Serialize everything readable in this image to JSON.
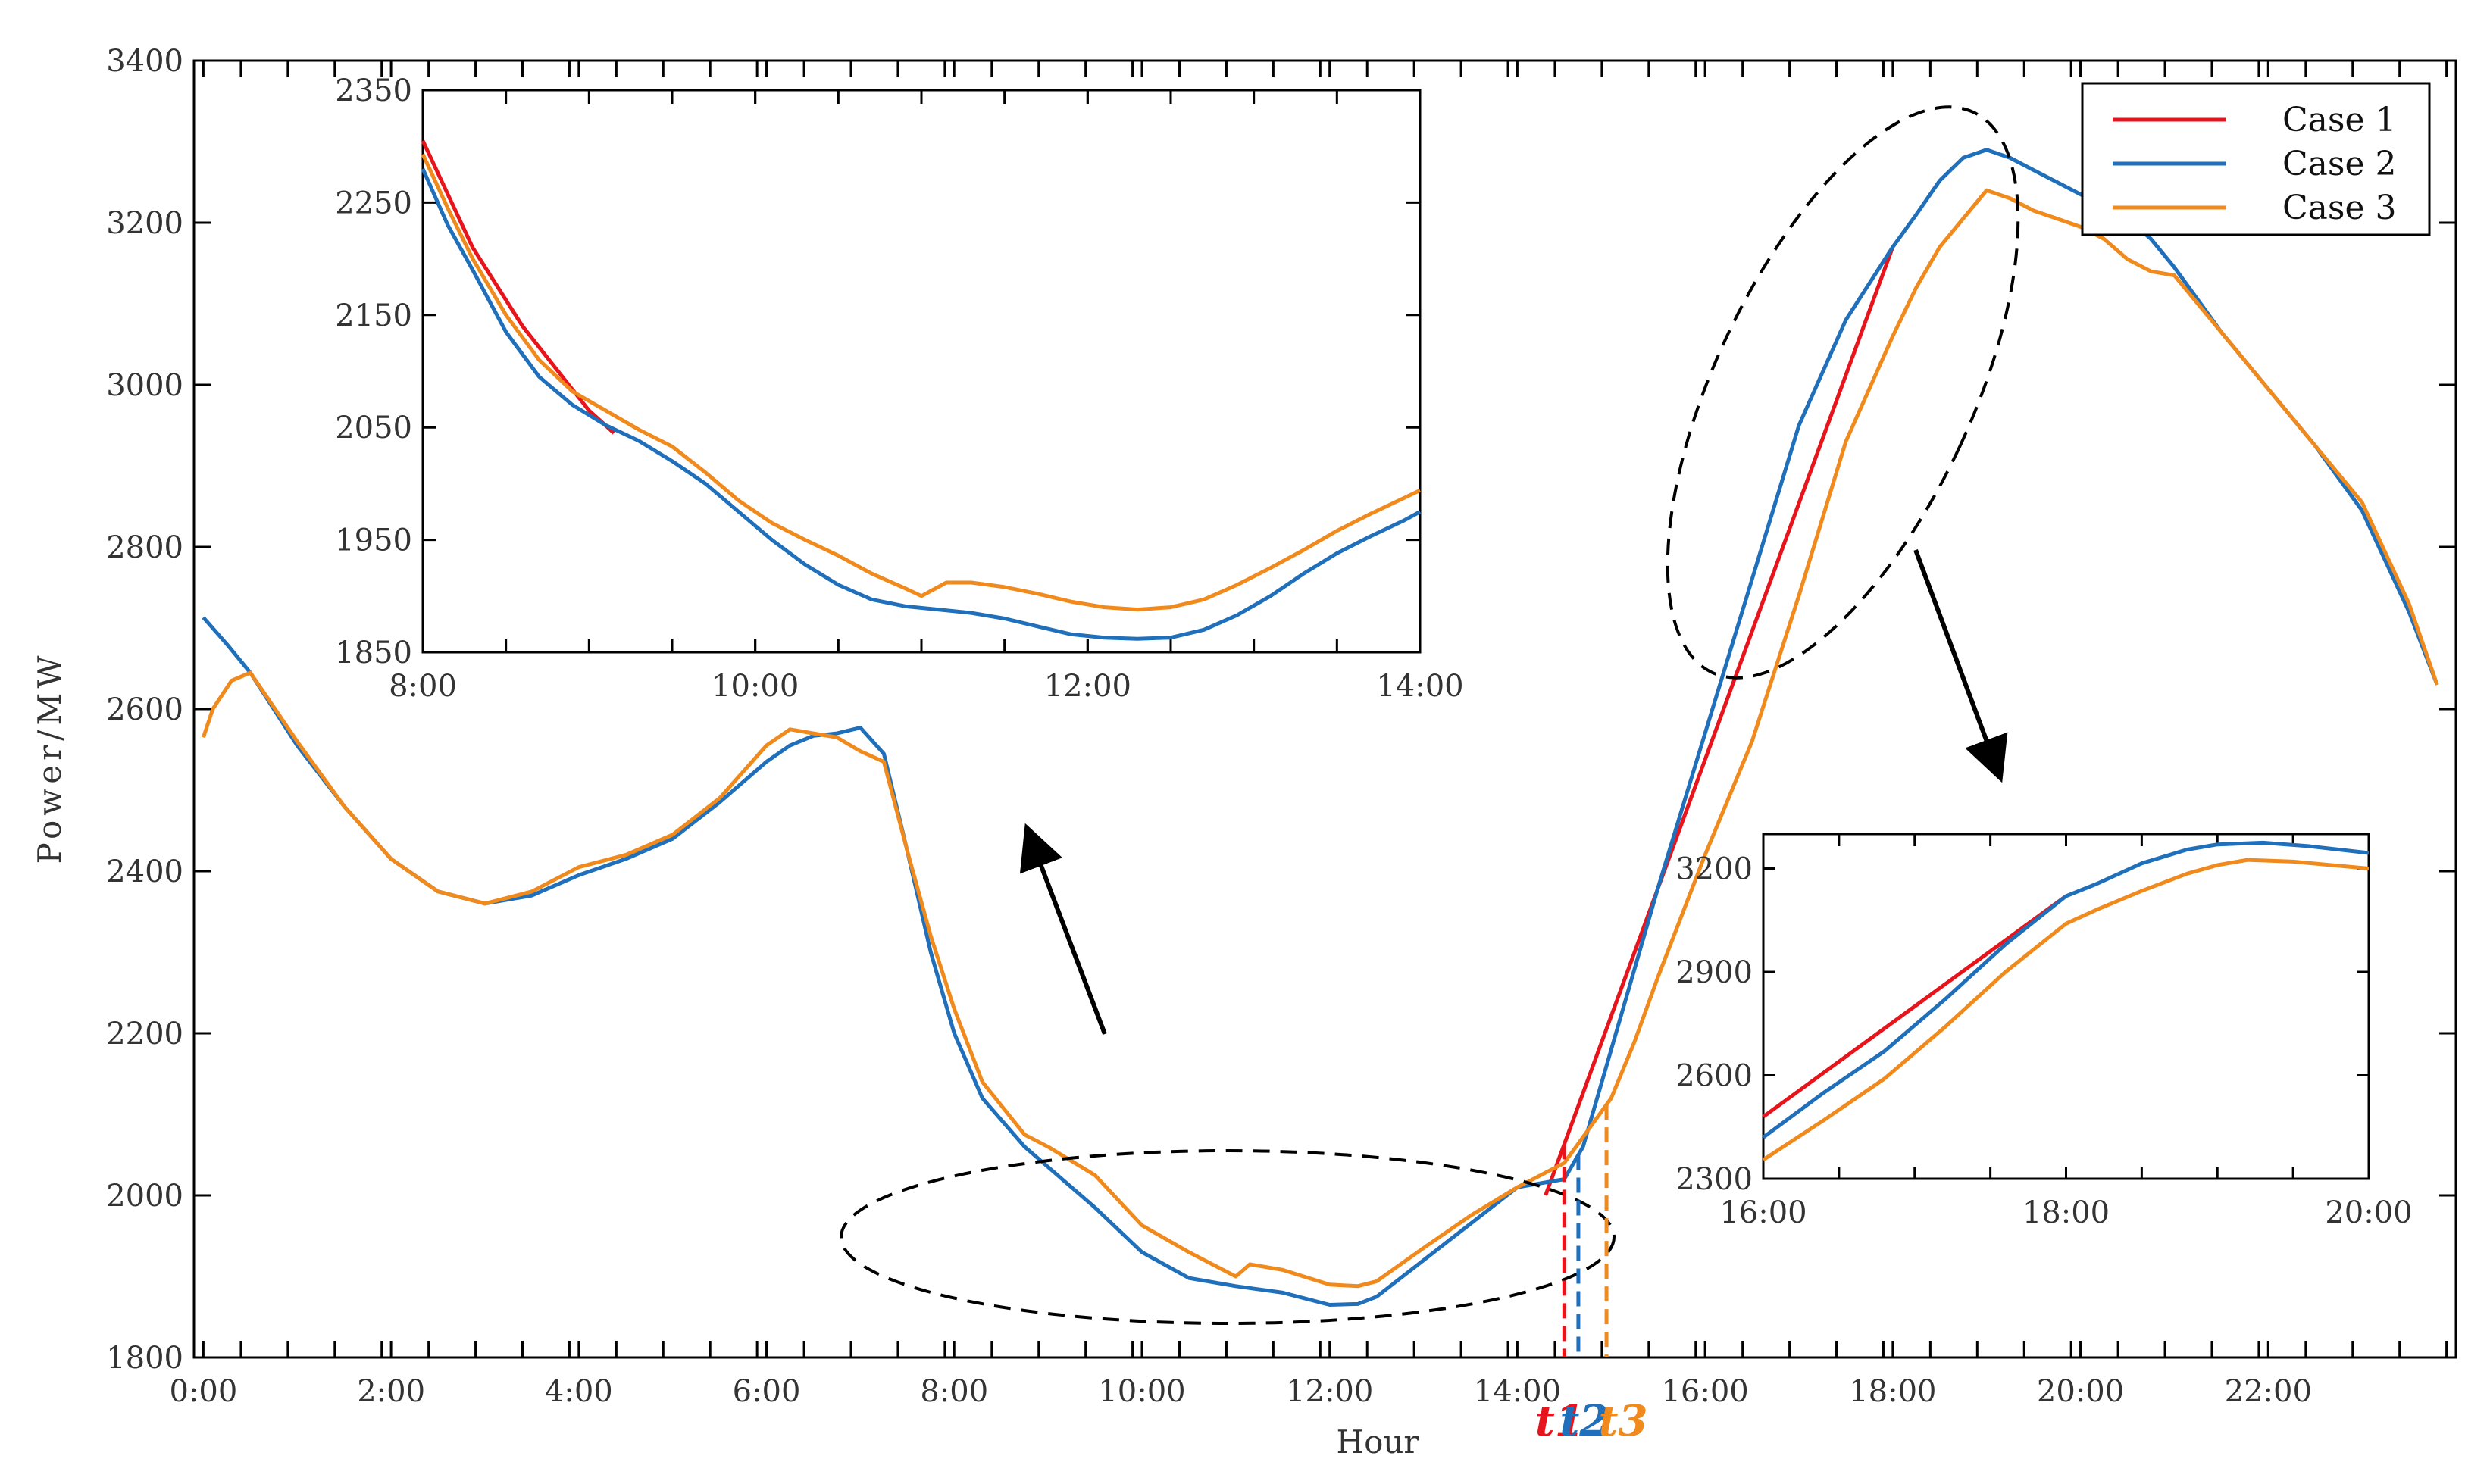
{
  "chart_data": [
    {
      "id": "main",
      "type": "line",
      "title": "",
      "xlabel": "Hour",
      "ylabel": "Power/MW",
      "xlim": [
        -0.1,
        24.0
      ],
      "ylim": [
        1800,
        3400
      ],
      "grid": false,
      "x_ticks": [
        0,
        2,
        4,
        6,
        8,
        10,
        12,
        14,
        16,
        18,
        20,
        22
      ],
      "x_tick_labels": [
        "0:00",
        "2:00",
        "4:00",
        "6:00",
        "8:00",
        "10:00",
        "12:00",
        "14:00",
        "16:00",
        "18:00",
        "20:00",
        "22:00"
      ],
      "y_ticks": [
        1800,
        2000,
        2200,
        2400,
        2600,
        2800,
        3000,
        3200,
        3400
      ],
      "y_tick_labels": [
        "1800",
        "2000",
        "2200",
        "2400",
        "2600",
        "2800",
        "3000",
        "3200",
        "3400"
      ],
      "legend": {
        "position": "top-right",
        "entries": [
          "Case 1",
          "Case 2",
          "Case 3"
        ]
      },
      "series": [
        {
          "name": "Case 1",
          "color": "#e8141c",
          "x": [
            14.3,
            18.0
          ],
          "y": [
            2000,
            3170
          ]
        },
        {
          "name": "Case 2",
          "color": "#1f6fba",
          "x": [
            0.0,
            0.25,
            0.5,
            1.0,
            1.5,
            2.0,
            2.5,
            3.0,
            3.5,
            4.0,
            4.5,
            5.0,
            5.5,
            6.0,
            6.25,
            6.5,
            6.75,
            7.0,
            7.25,
            7.5,
            7.75,
            8.0,
            8.3,
            8.75,
            9.0,
            9.5,
            10.0,
            10.5,
            11.0,
            11.5,
            12.0,
            12.3,
            12.5,
            13.0,
            13.5,
            14.0,
            14.5,
            14.7,
            15.0,
            15.5,
            16.0,
            16.5,
            17.0,
            17.5,
            18.0,
            18.25,
            18.5,
            18.75,
            19.0,
            19.25,
            19.5,
            19.75,
            20.0,
            20.25,
            20.5,
            20.75,
            21.0,
            21.25,
            21.5,
            22.0,
            22.5,
            23.0,
            23.5,
            23.8
          ],
          "y": [
            2713,
            2680,
            2645,
            2555,
            2480,
            2415,
            2375,
            2360,
            2370,
            2395,
            2415,
            2440,
            2485,
            2535,
            2555,
            2567,
            2570,
            2577,
            2545,
            2425,
            2300,
            2200,
            2120,
            2060,
            2035,
            1985,
            1930,
            1898,
            1888,
            1880,
            1865,
            1866,
            1875,
            1920,
            1965,
            2010,
            2020,
            2060,
            2180,
            2380,
            2570,
            2760,
            2950,
            3080,
            3170,
            3210,
            3252,
            3280,
            3290,
            3280,
            3265,
            3250,
            3235,
            3220,
            3205,
            3180,
            3145,
            3105,
            3065,
            2995,
            2925,
            2845,
            2720,
            2630
          ]
        },
        {
          "name": "Case 3",
          "color": "#f08a1c",
          "x": [
            0.0,
            0.1,
            0.3,
            0.5,
            1.0,
            1.5,
            2.0,
            2.5,
            3.0,
            3.5,
            4.0,
            4.5,
            5.0,
            5.5,
            6.0,
            6.25,
            6.5,
            6.75,
            7.0,
            7.25,
            7.5,
            7.75,
            8.0,
            8.3,
            8.75,
            9.0,
            9.5,
            10.0,
            10.5,
            11.0,
            11.15,
            11.5,
            12.0,
            12.3,
            12.5,
            13.0,
            13.5,
            14.0,
            14.5,
            14.75,
            15.0,
            15.25,
            15.5,
            16.0,
            16.5,
            17.0,
            17.5,
            18.0,
            18.25,
            18.5,
            18.75,
            19.0,
            19.25,
            19.5,
            19.75,
            20.0,
            20.25,
            20.5,
            20.75,
            21.0,
            21.25,
            21.5,
            22.0,
            22.5,
            23.0,
            23.5,
            23.8
          ],
          "y": [
            2565,
            2600,
            2635,
            2645,
            2560,
            2480,
            2415,
            2375,
            2360,
            2375,
            2405,
            2420,
            2445,
            2490,
            2555,
            2575,
            2570,
            2565,
            2548,
            2535,
            2425,
            2320,
            2230,
            2140,
            2075,
            2060,
            2025,
            1963,
            1930,
            1900,
            1915,
            1908,
            1890,
            1888,
            1894,
            1935,
            1975,
            2010,
            2040,
            2080,
            2120,
            2190,
            2270,
            2420,
            2560,
            2740,
            2930,
            3060,
            3120,
            3170,
            3205,
            3240,
            3230,
            3215,
            3205,
            3195,
            3180,
            3155,
            3140,
            3135,
            3100,
            3065,
            2995,
            2925,
            2855,
            2730,
            2630
          ]
        }
      ],
      "annotations": [
        {
          "label": "t1",
          "x": 14.5,
          "color": "#e8141c"
        },
        {
          "label": "t2",
          "x": 14.65,
          "color": "#1f6fba"
        },
        {
          "label": "t3",
          "x": 14.95,
          "color": "#f08a1c"
        }
      ]
    },
    {
      "id": "inset-left",
      "type": "line",
      "xlim": [
        8,
        14
      ],
      "ylim": [
        1850,
        2350
      ],
      "x_ticks": [
        8,
        10,
        12,
        14
      ],
      "x_tick_labels": [
        "8:00",
        "10:00",
        "12:00",
        "14:00"
      ],
      "y_ticks": [
        1850,
        1950,
        2050,
        2150,
        2250,
        2350
      ],
      "y_tick_labels": [
        "1850",
        "1950",
        "2050",
        "2150",
        "2250",
        "2350"
      ],
      "series": [
        {
          "name": "Case 1",
          "color": "#e8141c",
          "x": [
            8.0,
            8.3,
            8.6,
            9.0,
            9.15
          ],
          "y": [
            2305,
            2210,
            2140,
            2065,
            2045
          ]
        },
        {
          "name": "Case 2",
          "color": "#1f6fba",
          "x": [
            8.0,
            8.15,
            8.3,
            8.5,
            8.7,
            8.9,
            9.1,
            9.3,
            9.5,
            9.7,
            9.9,
            10.1,
            10.3,
            10.5,
            10.7,
            10.9,
            11.1,
            11.3,
            11.5,
            11.7,
            11.9,
            12.1,
            12.3,
            12.5,
            12.7,
            12.9,
            13.1,
            13.3,
            13.5,
            13.7,
            13.9,
            14.0
          ],
          "y": [
            2280,
            2230,
            2190,
            2135,
            2095,
            2070,
            2052,
            2038,
            2020,
            2000,
            1975,
            1950,
            1928,
            1910,
            1897,
            1891,
            1888,
            1885,
            1880,
            1873,
            1866,
            1863,
            1862,
            1863,
            1870,
            1883,
            1900,
            1920,
            1938,
            1953,
            1967,
            1975
          ]
        },
        {
          "name": "Case 3",
          "color": "#f08a1c",
          "x": [
            8.0,
            8.15,
            8.3,
            8.5,
            8.7,
            8.9,
            9.1,
            9.3,
            9.5,
            9.7,
            9.9,
            10.1,
            10.3,
            10.5,
            10.7,
            10.9,
            11.0,
            11.15,
            11.3,
            11.5,
            11.7,
            11.9,
            12.1,
            12.3,
            12.5,
            12.7,
            12.9,
            13.1,
            13.3,
            13.5,
            13.7,
            13.9,
            14.0
          ],
          "y": [
            2293,
            2245,
            2200,
            2150,
            2110,
            2082,
            2065,
            2048,
            2033,
            2010,
            1985,
            1965,
            1950,
            1936,
            1920,
            1907,
            1900,
            1912,
            1912,
            1908,
            1902,
            1895,
            1890,
            1888,
            1890,
            1897,
            1910,
            1925,
            1941,
            1958,
            1973,
            1987,
            1994
          ]
        }
      ]
    },
    {
      "id": "inset-right",
      "type": "line",
      "xlim": [
        16,
        20
      ],
      "ylim": [
        2300,
        3300
      ],
      "x_ticks": [
        16,
        18,
        20
      ],
      "x_tick_labels": [
        "16:00",
        "18:00",
        "20:00"
      ],
      "y_ticks": [
        2300,
        2600,
        2900,
        3200
      ],
      "y_tick_labels": [
        "2300",
        "2600",
        "2900",
        "3200"
      ],
      "series": [
        {
          "name": "Case 1",
          "color": "#e8141c",
          "x": [
            16.0,
            18.0
          ],
          "y": [
            2480,
            3120
          ]
        },
        {
          "name": "Case 2",
          "color": "#1f6fba",
          "x": [
            16.0,
            16.4,
            16.8,
            17.2,
            17.6,
            18.0,
            18.2,
            18.5,
            18.8,
            19.0,
            19.3,
            19.6,
            20.0
          ],
          "y": [
            2420,
            2550,
            2670,
            2820,
            2980,
            3120,
            3155,
            3215,
            3255,
            3270,
            3275,
            3265,
            3245
          ]
        },
        {
          "name": "Case 3",
          "color": "#f08a1c",
          "x": [
            16.0,
            16.4,
            16.8,
            17.2,
            17.6,
            18.0,
            18.2,
            18.5,
            18.8,
            19.0,
            19.2,
            19.5,
            20.0
          ],
          "y": [
            2355,
            2470,
            2590,
            2740,
            2900,
            3040,
            3080,
            3135,
            3185,
            3210,
            3225,
            3220,
            3200
          ]
        }
      ]
    }
  ]
}
